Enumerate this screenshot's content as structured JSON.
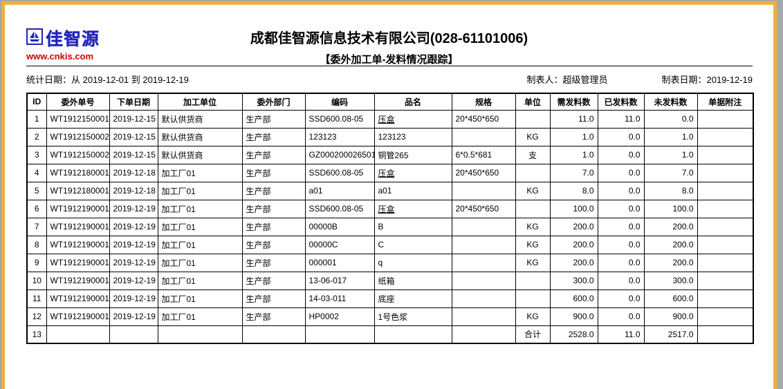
{
  "logo": {
    "brand": "佳智源",
    "url": "www.cnkis.com",
    "icon": "sailboat-icon",
    "brand_color": "#2222bb",
    "url_color": "#cc0000"
  },
  "header": {
    "title": "成都佳智源信息技术有限公司(028-61101006)",
    "subtitle": "【委外加工单-发料情况跟踪】"
  },
  "meta": {
    "stat_date": "统计日期：从 2019-12-01 到 2019-12-19",
    "maker": "制表人：超级管理员",
    "make_date": "制表日期：2019-12-19"
  },
  "table": {
    "columns": [
      "ID",
      "委外单号",
      "下单日期",
      "加工单位",
      "委外部门",
      "编码",
      "品名",
      "规格",
      "单位",
      "需发料数",
      "已发料数",
      "未发料数",
      "单据附注"
    ],
    "rows": [
      {
        "id": "1",
        "order_no": "WT1912150001",
        "order_date": "2019-12-15",
        "processor": "默认供货商",
        "dept": "生产部",
        "code": "SSD600.08-05",
        "name": "压盒",
        "spec": "20*450*650",
        "unit": "",
        "need": "11.0",
        "issued": "11.0",
        "unissued": "0.0",
        "note": "",
        "name_link": true
      },
      {
        "id": "2",
        "order_no": "WT1912150002",
        "order_date": "2019-12-15",
        "processor": "默认供货商",
        "dept": "生产部",
        "code": "123123",
        "name": "123123",
        "spec": "",
        "unit": "KG",
        "need": "1.0",
        "issued": "0.0",
        "unissued": "1.0",
        "note": ""
      },
      {
        "id": "3",
        "order_no": "WT1912150002",
        "order_date": "2019-12-15",
        "processor": "默认供货商",
        "dept": "生产部",
        "code": "GZ000200026501",
        "name": "铜管265",
        "spec": "6*0.5*681",
        "unit": "支",
        "need": "1.0",
        "issued": "0.0",
        "unissued": "1.0",
        "note": ""
      },
      {
        "id": "4",
        "order_no": "WT1912180001",
        "order_date": "2019-12-18",
        "processor": "加工厂01",
        "dept": "生产部",
        "code": "SSD600.08-05",
        "name": "压盒",
        "spec": "20*450*650",
        "unit": "",
        "need": "7.0",
        "issued": "0.0",
        "unissued": "7.0",
        "note": "",
        "name_link": true
      },
      {
        "id": "5",
        "order_no": "WT1912180001",
        "order_date": "2019-12-18",
        "processor": "加工厂01",
        "dept": "生产部",
        "code": "a01",
        "name": "a01",
        "spec": "",
        "unit": "KG",
        "need": "8.0",
        "issued": "0.0",
        "unissued": "8.0",
        "note": ""
      },
      {
        "id": "6",
        "order_no": "WT1912190001",
        "order_date": "2019-12-19",
        "processor": "加工厂01",
        "dept": "生产部",
        "code": "SSD600.08-05",
        "name": "压盒",
        "spec": "20*450*650",
        "unit": "",
        "need": "100.0",
        "issued": "0.0",
        "unissued": "100.0",
        "note": "",
        "name_link": true
      },
      {
        "id": "7",
        "order_no": "WT1912190001",
        "order_date": "2019-12-19",
        "processor": "加工厂01",
        "dept": "生产部",
        "code": "00000B",
        "name": "B",
        "spec": "",
        "unit": "KG",
        "need": "200.0",
        "issued": "0.0",
        "unissued": "200.0",
        "note": ""
      },
      {
        "id": "8",
        "order_no": "WT1912190001",
        "order_date": "2019-12-19",
        "processor": "加工厂01",
        "dept": "生产部",
        "code": "00000C",
        "name": "C",
        "spec": "",
        "unit": "KG",
        "need": "200.0",
        "issued": "0.0",
        "unissued": "200.0",
        "note": ""
      },
      {
        "id": "9",
        "order_no": "WT1912190001",
        "order_date": "2019-12-19",
        "processor": "加工厂01",
        "dept": "生产部",
        "code": "000001",
        "name": "q",
        "spec": "",
        "unit": "KG",
        "need": "200.0",
        "issued": "0.0",
        "unissued": "200.0",
        "note": ""
      },
      {
        "id": "10",
        "order_no": "WT1912190001",
        "order_date": "2019-12-19",
        "processor": "加工厂01",
        "dept": "生产部",
        "code": "13-06-017",
        "name": "纸箱",
        "spec": "",
        "unit": "",
        "need": "300.0",
        "issued": "0.0",
        "unissued": "300.0",
        "note": ""
      },
      {
        "id": "11",
        "order_no": "WT1912190001",
        "order_date": "2019-12-19",
        "processor": "加工厂01",
        "dept": "生产部",
        "code": "14-03-011",
        "name": "底座",
        "spec": "",
        "unit": "",
        "need": "600.0",
        "issued": "0.0",
        "unissued": "600.0",
        "note": ""
      },
      {
        "id": "12",
        "order_no": "WT1912190001",
        "order_date": "2019-12-19",
        "processor": "加工厂01",
        "dept": "生产部",
        "code": "HP0002",
        "name": "1号色浆",
        "spec": "",
        "unit": "KG",
        "need": "900.0",
        "issued": "0.0",
        "unissued": "900.0",
        "note": ""
      },
      {
        "id": "13",
        "order_no": "",
        "order_date": "",
        "processor": "",
        "dept": "",
        "code": "",
        "name": "",
        "spec": "",
        "unit": "合计",
        "need": "2528.0",
        "issued": "11.0",
        "unissued": "2517.0",
        "note": "",
        "is_total": true
      }
    ]
  },
  "frame_colors": {
    "border_gold": "#ebb140",
    "outside_gray": "#a8a8a8"
  }
}
